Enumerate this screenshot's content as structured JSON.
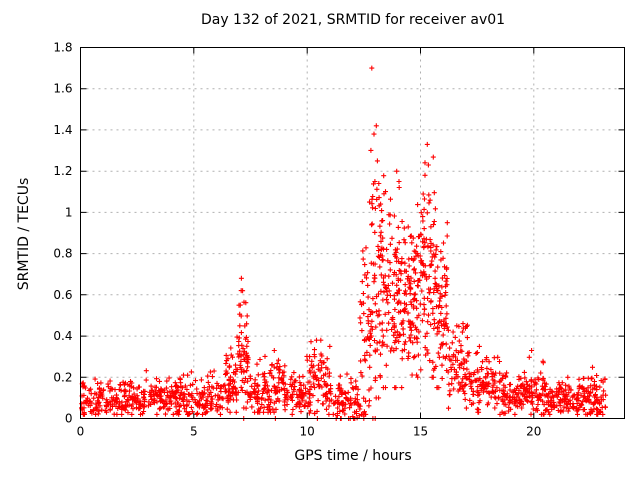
{
  "chart_data": {
    "type": "scatter",
    "title": "Day 132 of 2021, SRMTID for receiver av01",
    "xlabel": "GPS time / hours",
    "ylabel": "SRMTID / TECUs",
    "xlim": [
      0,
      24
    ],
    "ylim": [
      0,
      1.8
    ],
    "xticks": [
      0,
      5,
      10,
      15,
      20
    ],
    "yticks": [
      0,
      0.2,
      0.4,
      0.6,
      0.8,
      1,
      1.2,
      1.4,
      1.6,
      1.8
    ],
    "grid": true,
    "legend": "none",
    "marker": "plus",
    "marker_color": "#ff0000",
    "seed": 132,
    "description": "Dense scatter of TID slant-rate index vs GPS time. Quiet baseline near 0.1 TECU, a bump to 0.68 near 07:00, minor activity 10-11 h, then a major disturbance 12.5-16.5 h peaking at 1.70 TECU near 12.9 h and 1.33 near 15.3 h, decaying back to ~0.1 TECU by 19-23 h.",
    "density_segments": [
      {
        "x0": 0.05,
        "x1": 6.3,
        "n": 430,
        "mean": 0.1,
        "sd": 0.045,
        "min": 0.02,
        "max": 0.27
      },
      {
        "x0": 6.3,
        "x1": 6.9,
        "n": 60,
        "mean": 0.15,
        "sd": 0.07,
        "min": 0.03,
        "max": 0.45
      },
      {
        "x0": 6.9,
        "x1": 7.4,
        "n": 60,
        "mean": 0.3,
        "sd": 0.13,
        "min": 0.05,
        "max": 0.66
      },
      {
        "x0": 7.4,
        "x1": 8.3,
        "n": 70,
        "mean": 0.13,
        "sd": 0.06,
        "min": 0.03,
        "max": 0.33
      },
      {
        "x0": 8.3,
        "x1": 9.0,
        "n": 55,
        "mean": 0.16,
        "sd": 0.07,
        "min": 0.03,
        "max": 0.35
      },
      {
        "x0": 9.0,
        "x1": 9.9,
        "n": 70,
        "mean": 0.12,
        "sd": 0.05,
        "min": 0.02,
        "max": 0.28
      },
      {
        "x0": 9.9,
        "x1": 11.2,
        "n": 100,
        "mean": 0.16,
        "sd": 0.08,
        "min": 0.02,
        "max": 0.38
      },
      {
        "x0": 11.2,
        "x1": 12.3,
        "n": 80,
        "mean": 0.09,
        "sd": 0.05,
        "min": 0.0,
        "max": 0.3
      },
      {
        "x0": 12.3,
        "x1": 12.8,
        "n": 55,
        "mean": 0.35,
        "sd": 0.2,
        "min": 0.02,
        "max": 1.05
      },
      {
        "x0": 12.8,
        "x1": 13.3,
        "n": 70,
        "mean": 0.65,
        "sd": 0.3,
        "min": 0.1,
        "max": 1.42
      },
      {
        "x0": 13.3,
        "x1": 14.2,
        "n": 120,
        "mean": 0.62,
        "sd": 0.22,
        "min": 0.15,
        "max": 1.25
      },
      {
        "x0": 14.2,
        "x1": 15.0,
        "n": 110,
        "mean": 0.58,
        "sd": 0.18,
        "min": 0.2,
        "max": 1.1
      },
      {
        "x0": 15.0,
        "x1": 15.7,
        "n": 100,
        "mean": 0.72,
        "sd": 0.25,
        "min": 0.2,
        "max": 1.3
      },
      {
        "x0": 15.7,
        "x1": 16.2,
        "n": 70,
        "mean": 0.5,
        "sd": 0.18,
        "min": 0.15,
        "max": 0.95
      },
      {
        "x0": 16.2,
        "x1": 17.2,
        "n": 85,
        "mean": 0.27,
        "sd": 0.09,
        "min": 0.05,
        "max": 0.55
      },
      {
        "x0": 17.2,
        "x1": 18.5,
        "n": 100,
        "mean": 0.17,
        "sd": 0.07,
        "min": 0.03,
        "max": 0.38
      },
      {
        "x0": 18.5,
        "x1": 19.8,
        "n": 100,
        "mean": 0.12,
        "sd": 0.05,
        "min": 0.02,
        "max": 0.3
      },
      {
        "x0": 19.8,
        "x1": 20.6,
        "n": 70,
        "mean": 0.14,
        "sd": 0.06,
        "min": 0.02,
        "max": 0.33
      },
      {
        "x0": 20.6,
        "x1": 22.2,
        "n": 120,
        "mean": 0.09,
        "sd": 0.04,
        "min": 0.02,
        "max": 0.22
      },
      {
        "x0": 22.2,
        "x1": 23.2,
        "n": 80,
        "mean": 0.1,
        "sd": 0.05,
        "min": 0.02,
        "max": 0.25
      }
    ],
    "highlight_points": [
      [
        12.85,
        1.7
      ],
      [
        13.05,
        1.42
      ],
      [
        12.95,
        1.38
      ],
      [
        13.1,
        1.25
      ],
      [
        15.3,
        1.33
      ],
      [
        15.35,
        1.23
      ],
      [
        15.2,
        1.18
      ],
      [
        12.75,
        1.05
      ],
      [
        13.95,
        1.2
      ],
      [
        14.05,
        1.15
      ],
      [
        7.1,
        0.68
      ],
      [
        7.15,
        0.62
      ],
      [
        7.05,
        0.55
      ],
      [
        10.6,
        0.38
      ],
      [
        11.0,
        0.35
      ],
      [
        8.55,
        0.33
      ],
      [
        16.6,
        0.45
      ],
      [
        17.6,
        0.35
      ],
      [
        19.9,
        0.33
      ],
      [
        21.5,
        0.2
      ]
    ],
    "zero_points": [
      7.2,
      8.6,
      10.45,
      11.5,
      11.9,
      12.1,
      12.5,
      12.9,
      13.0
    ]
  },
  "plot_style": {
    "border_color": "#000000",
    "grid_color": "#b0b0b0",
    "background": "#ffffff"
  }
}
